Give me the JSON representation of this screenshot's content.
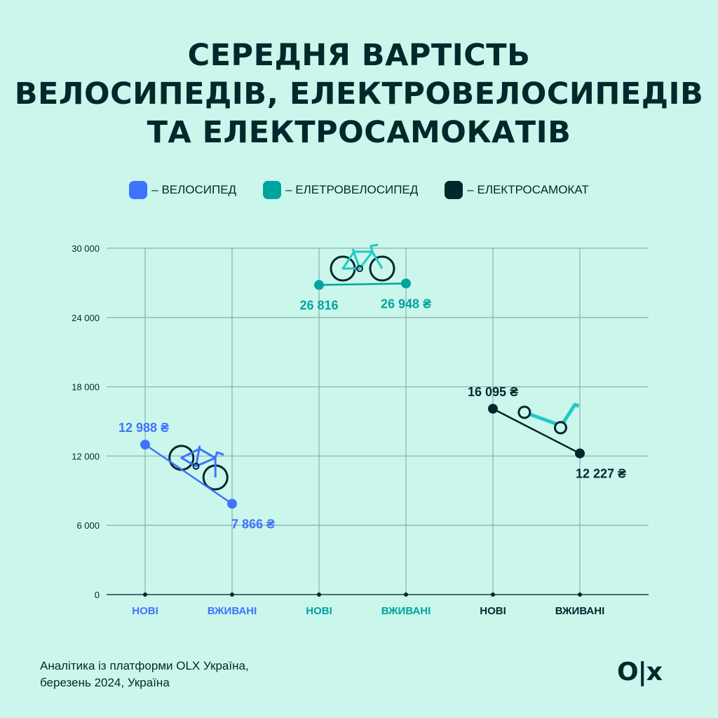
{
  "title": [
    "СЕРЕДНЯ ВАРТІСТЬ",
    "ВЕЛОСИПЕДІВ, ЕЛЕКТРОВЕЛОСИПЕДІВ",
    "ТА ЕЛЕКТРОСАМОКАТІВ"
  ],
  "legend": [
    {
      "label": "– ВЕЛОСИПЕД",
      "color": "#3e73ff"
    },
    {
      "label": "– ЕЛЕТРОВЕЛОСИПЕД",
      "color": "#00a49f"
    },
    {
      "label": "– ЕЛЕКТРОСАМОКАТ",
      "color": "#02282c"
    }
  ],
  "footer": [
    "Аналітика із платформи OLX Україна,",
    "березень 2024, Україна"
  ],
  "logo": "OLX",
  "chart_data": {
    "type": "line",
    "categories": [
      "НОВІ",
      "ВЖИВАНІ",
      "НОВІ",
      "ВЖИВАНІ",
      "НОВІ",
      "ВЖИВАНІ"
    ],
    "ylim": [
      0,
      30000
    ],
    "yticks": [
      0,
      6000,
      12000,
      18000,
      24000,
      30000
    ],
    "ytick_labels": [
      "0",
      "6 000",
      "12 000",
      "18 000",
      "24 000",
      "30 000"
    ],
    "grid": true,
    "series": [
      {
        "name": "ВЕЛОСИПЕД",
        "color": "#3e73ff",
        "x": [
          0,
          1
        ],
        "values": [
          12988,
          7866
        ],
        "labels": [
          "12 988 ₴",
          "7 866 ₴"
        ],
        "icon": "bicycle-icon"
      },
      {
        "name": "ЕЛЕТРОВЕЛОСИПЕД",
        "color": "#00a49f",
        "x": [
          2,
          3
        ],
        "values": [
          26816,
          26948
        ],
        "labels": [
          "26 816",
          "26 948 ₴"
        ],
        "icon": "ebike-icon"
      },
      {
        "name": "ЕЛЕКТРОСАМОКАТ",
        "color": "#02282c",
        "x": [
          4,
          5
        ],
        "values": [
          16095,
          12227
        ],
        "labels": [
          "16 095 ₴",
          "12 227 ₴"
        ],
        "icon": "scooter-icon"
      }
    ]
  }
}
